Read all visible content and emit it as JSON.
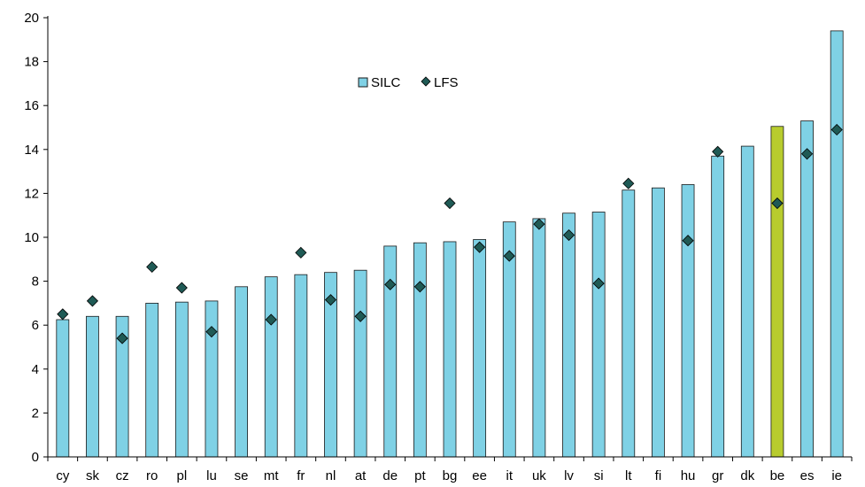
{
  "chart_data": {
    "type": "bar",
    "categories": [
      "cy",
      "sk",
      "cz",
      "ro",
      "pl",
      "lu",
      "se",
      "mt",
      "fr",
      "nl",
      "at",
      "de",
      "pt",
      "bg",
      "ee",
      "it",
      "uk",
      "lv",
      "si",
      "lt",
      "fi",
      "hu",
      "gr",
      "dk",
      "be",
      "es",
      "ie"
    ],
    "series": [
      {
        "name": "SILC",
        "type": "bar",
        "values": [
          6.25,
          6.4,
          6.4,
          7.0,
          7.05,
          7.1,
          7.75,
          8.2,
          8.3,
          8.4,
          8.5,
          9.6,
          9.75,
          9.8,
          9.9,
          10.7,
          10.85,
          11.1,
          11.15,
          12.15,
          12.25,
          12.4,
          13.7,
          14.15,
          15.05,
          15.3,
          19.4
        ]
      },
      {
        "name": "LFS",
        "type": "marker",
        "values": [
          6.5,
          7.1,
          5.4,
          8.65,
          7.7,
          5.7,
          null,
          6.25,
          9.3,
          7.15,
          6.4,
          7.85,
          7.75,
          11.55,
          9.55,
          9.15,
          10.6,
          10.1,
          7.9,
          12.45,
          null,
          9.85,
          13.9,
          null,
          11.55,
          13.8,
          14.9
        ]
      }
    ],
    "highlight_category": "be",
    "colors": {
      "bar": "#7fd1e5",
      "bar_highlight": "#b8cc2e",
      "bar_stroke": "#1a1a1a",
      "marker": "#1f5a55",
      "axis": "#000000"
    },
    "ylim": [
      0,
      20
    ],
    "yticks": [
      "0",
      "2",
      "4",
      "6",
      "8",
      "10",
      "12",
      "14",
      "16",
      "18",
      "20"
    ],
    "grid": false,
    "legend_placement": "top-center",
    "legend": [
      {
        "label": "SILC",
        "symbol": "bar"
      },
      {
        "label": "LFS",
        "symbol": "diamond"
      }
    ],
    "title": "",
    "xlabel": "",
    "ylabel": ""
  }
}
